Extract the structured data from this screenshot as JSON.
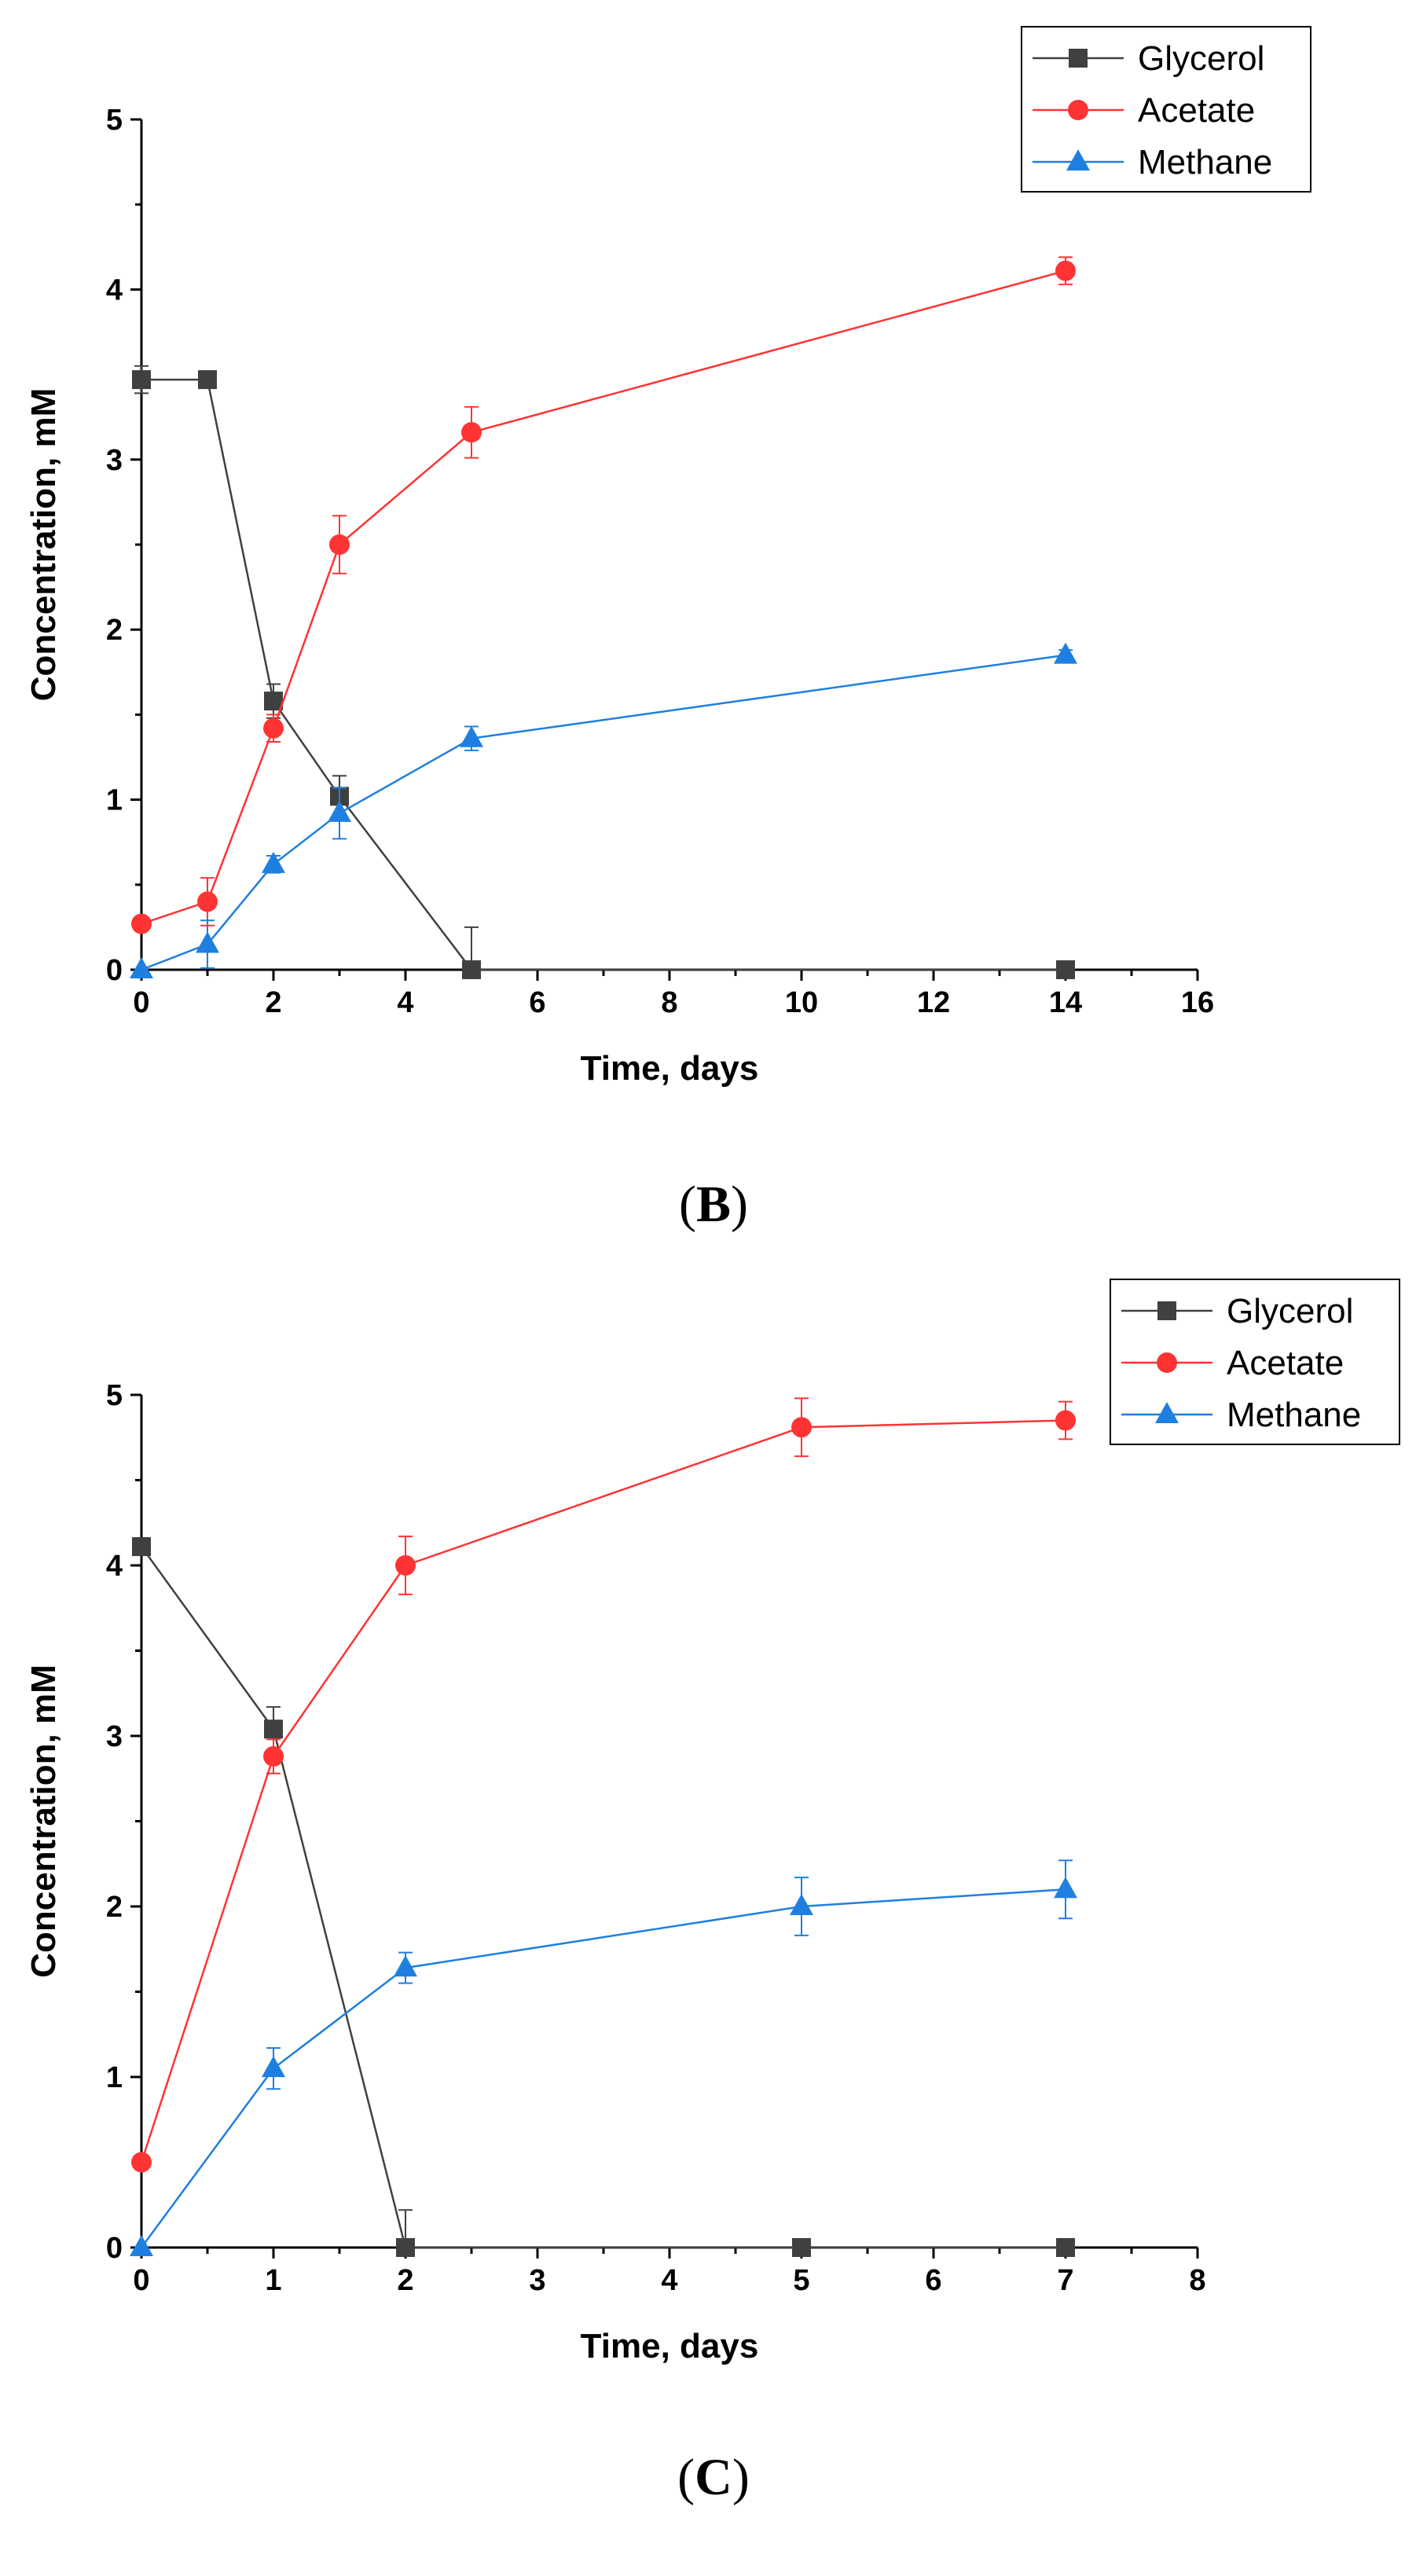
{
  "chart_data": [
    {
      "panel": "B",
      "type": "line",
      "title": "",
      "xlabel": "Time, days",
      "ylabel": "Concentration, mM",
      "xlim": [
        0,
        16
      ],
      "ylim": [
        0,
        5
      ],
      "xticks": [
        0,
        2,
        4,
        6,
        8,
        10,
        12,
        14,
        16
      ],
      "yticks": [
        0,
        1,
        2,
        3,
        4,
        5
      ],
      "legend": "top-right",
      "series": [
        {
          "name": "Glycerol",
          "color": "#404040",
          "marker": "square",
          "x": [
            0,
            1,
            2,
            3,
            5,
            14
          ],
          "values": [
            3.47,
            3.47,
            1.58,
            1.02,
            0.0,
            0.0
          ],
          "errors": [
            0.08,
            0.0,
            0.1,
            0.12,
            0.25,
            0.0
          ]
        },
        {
          "name": "Acetate",
          "color": "#ff3333",
          "marker": "circle",
          "x": [
            0,
            1,
            2,
            3,
            5,
            14
          ],
          "values": [
            0.27,
            0.4,
            1.42,
            2.5,
            3.16,
            4.11
          ],
          "errors": [
            0.0,
            0.14,
            0.08,
            0.17,
            0.15,
            0.08
          ]
        },
        {
          "name": "Methane",
          "color": "#1e7fe0",
          "marker": "triangle",
          "x": [
            0,
            1,
            2,
            3,
            5,
            14
          ],
          "values": [
            0.0,
            0.15,
            0.62,
            0.92,
            1.36,
            1.85
          ],
          "errors": [
            0.0,
            0.14,
            0.05,
            0.15,
            0.07,
            0.03
          ]
        }
      ]
    },
    {
      "panel": "C",
      "type": "line",
      "title": "",
      "xlabel": "Time, days",
      "ylabel": "Concentration, mM",
      "xlim": [
        0,
        8
      ],
      "ylim": [
        0,
        5
      ],
      "xticks": [
        0,
        1,
        2,
        3,
        4,
        5,
        6,
        7,
        8
      ],
      "yticks": [
        0,
        1,
        2,
        3,
        4,
        5
      ],
      "legend": "top-right",
      "series": [
        {
          "name": "Glycerol",
          "color": "#404040",
          "marker": "square",
          "x": [
            0,
            1,
            2,
            5,
            7
          ],
          "values": [
            4.11,
            3.04,
            0.0,
            0.0,
            0.0
          ],
          "errors": [
            0.05,
            0.13,
            0.22,
            0.0,
            0.0
          ]
        },
        {
          "name": "Acetate",
          "color": "#ff3333",
          "marker": "circle",
          "x": [
            0,
            1,
            2,
            5,
            7
          ],
          "values": [
            0.5,
            2.88,
            4.0,
            4.81,
            4.85
          ],
          "errors": [
            0.0,
            0.1,
            0.17,
            0.17,
            0.11
          ]
        },
        {
          "name": "Methane",
          "color": "#1e7fe0",
          "marker": "triangle",
          "x": [
            0,
            1,
            2,
            5,
            7
          ],
          "values": [
            0.0,
            1.05,
            1.64,
            2.0,
            2.1
          ],
          "errors": [
            0.0,
            0.12,
            0.09,
            0.17,
            0.17
          ]
        }
      ]
    }
  ],
  "panel_labels": {
    "b_open": "(",
    "b_letter": "B",
    "b_close": ")",
    "c_open": "(",
    "c_letter": "C",
    "c_close": ")"
  }
}
